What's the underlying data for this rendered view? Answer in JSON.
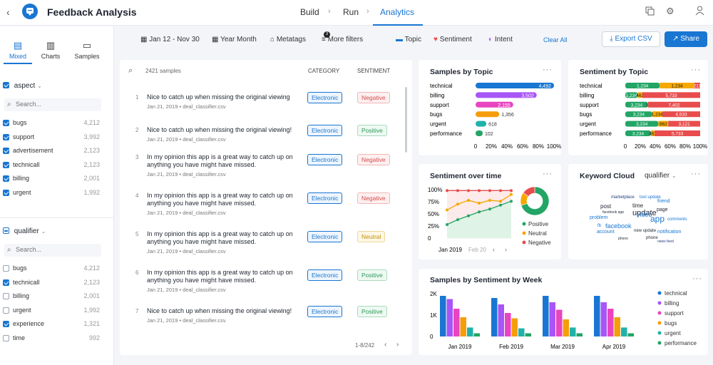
{
  "header": {
    "title": "Feedback Analysis",
    "tabs": [
      "Build",
      "Run",
      "Analytics"
    ],
    "active_tab": "Analytics"
  },
  "left": {
    "views": [
      "Mixed",
      "Charts",
      "Samples"
    ],
    "aspect": {
      "label": "aspect",
      "search_placeholder": "Search...",
      "items": [
        {
          "label": "bugs",
          "count": "4,212",
          "checked": true
        },
        {
          "label": "support",
          "count": "3,992",
          "checked": true
        },
        {
          "label": "advertisement",
          "count": "2,123",
          "checked": true
        },
        {
          "label": "technicall",
          "count": "2,123",
          "checked": true
        },
        {
          "label": "billing",
          "count": "2,001",
          "checked": true
        },
        {
          "label": "urgent",
          "count": "1,992",
          "checked": true
        }
      ]
    },
    "qualifier": {
      "label": "qualifier",
      "search_placeholder": "Search...",
      "items": [
        {
          "label": "bugs",
          "count": "4,212",
          "checked": false
        },
        {
          "label": "technicall",
          "count": "2,123",
          "checked": true
        },
        {
          "label": "billing",
          "count": "2,001",
          "checked": false
        },
        {
          "label": "urgent",
          "count": "1,992",
          "checked": false
        },
        {
          "label": "experience",
          "count": "1,321",
          "checked": true
        },
        {
          "label": "time",
          "count": "992",
          "checked": false
        }
      ]
    }
  },
  "toolbar": {
    "date": "Jan 12 - Nov 30",
    "granularity": "Year Month",
    "metatags": "Metatags",
    "more_filters": "More filters",
    "filter_badge": "3",
    "topic": "Topic",
    "sentiment": "Sentiment",
    "intent": "Intent",
    "clear_all": "Clear All",
    "export": "Export CSV",
    "share": "Share"
  },
  "samples": {
    "count_label": "2421 samples",
    "col_category": "CATEGORY",
    "col_sentiment": "SENTIMENT",
    "pagination": "1-8/242",
    "rows": [
      {
        "n": "1",
        "text": "Nice to catch up when missing the original viewing",
        "meta": "Jan 21, 2019 • deal_classifier.csv",
        "category": "Electronic",
        "sentiment": "Negative"
      },
      {
        "n": "2",
        "text": "Nice to catch up when missing the original viewing!",
        "meta": "Jan 21, 2019 • deal_classifier.csv",
        "category": "Electronic",
        "sentiment": "Positive"
      },
      {
        "n": "3",
        "text": "In my opinion this app is a great way to catch up on anything you have might have missed.",
        "meta": "Jan 21, 2019 • deal_classifier.csv",
        "category": "Electronic",
        "sentiment": "Negative"
      },
      {
        "n": "4",
        "text": "In my opinion this app is a great way to catch up on anything you have might have missed.",
        "meta": "Jan 21, 2019 • deal_classifier.csv",
        "category": "Electronic",
        "sentiment": "Negative"
      },
      {
        "n": "5",
        "text": "In my opinion this app is a great way to catch up on anything you have might have missed.",
        "meta": "Jan 21, 2019 • deal_classifier.csv",
        "category": "Electronic",
        "sentiment": "Neutral"
      },
      {
        "n": "6",
        "text": "In my opinion this app is a great way to catch up on anything you have might have missed.",
        "meta": "Jan 21, 2019 • deal_classifier.csv",
        "category": "Electronic",
        "sentiment": "Positive"
      },
      {
        "n": "7",
        "text": "Nice to catch up when missing the original viewing!",
        "meta": "Jan 21, 2019 • deal_classifier.csv",
        "category": "Electronic",
        "sentiment": "Positive"
      }
    ]
  },
  "colors": {
    "technical": "#1976d2",
    "billing": "#a855f7",
    "support": "#e845c0",
    "bugs": "#f59e0b",
    "urgent": "#20b2aa",
    "performance": "#22a565",
    "positive": "#22a565",
    "neutral": "#f5a800",
    "negative": "#e84c4c"
  },
  "chart_data": [
    {
      "type": "bar",
      "title": "Samples by Topic",
      "categories": [
        "technical",
        "billing",
        "support",
        "bugs",
        "urgent",
        "performance"
      ],
      "values": [
        4492,
        3502,
        2155,
        1356,
        618,
        102
      ],
      "data_labels": [
        "4,492",
        "3,502",
        "2,155",
        "1,356",
        "618",
        "102"
      ],
      "x_ticks": [
        "0",
        "20%",
        "40%",
        "60%",
        "80%",
        "100%"
      ]
    },
    {
      "type": "bar",
      "title": "Sentiment by Topic",
      "stacked": true,
      "categories": [
        "technical",
        "billing",
        "support",
        "bugs",
        "urgent",
        "performance"
      ],
      "series": [
        {
          "name": "Positive",
          "values": [
            1234,
            1234,
            3234,
            3234,
            3234,
            3234
          ],
          "labels": [
            "1,234",
            "1,234",
            "3,234",
            "3,234",
            "3,234",
            "3,234"
          ]
        },
        {
          "name": "Neutral",
          "values": [
            1234,
            462,
            12,
            1234,
            962,
            462
          ],
          "labels": [
            "1,234",
            "462",
            "12",
            "1,234",
            "962",
            "462"
          ]
        },
        {
          "name": "Negative",
          "values": [
            211,
            5733,
            7402,
            4533,
            3121,
            5733
          ],
          "labels": [
            "211",
            "5,733",
            "7,402",
            "4,533",
            "3,121",
            "5,733"
          ]
        }
      ],
      "x_ticks": [
        "0",
        "20%",
        "40%",
        "60%",
        "80%",
        "100%"
      ]
    },
    {
      "type": "line",
      "title": "Sentiment over time",
      "y_ticks": [
        "100%",
        "75%",
        "50%",
        "25%",
        "0"
      ],
      "x_ticks": [
        "Jan 2019",
        "Feb 20"
      ],
      "series": [
        {
          "name": "Negative",
          "values": [
            98,
            98,
            98,
            98,
            98,
            98,
            98
          ]
        },
        {
          "name": "Neutral",
          "values": [
            58,
            70,
            78,
            72,
            78,
            76,
            90
          ]
        },
        {
          "name": "Positive",
          "values": [
            28,
            38,
            46,
            54,
            60,
            68,
            76
          ]
        }
      ],
      "legend": [
        "Positive",
        "Neutral",
        "Negative"
      ],
      "donut": [
        70,
        15,
        15
      ]
    },
    {
      "type": "bar",
      "title": "Samples by Sentiment by Week",
      "categories": [
        "Jan 2019",
        "Feb 2019",
        "Mar 2019",
        "Apr 2019"
      ],
      "y_ticks": [
        "2K",
        "1K",
        "0"
      ],
      "series": [
        {
          "name": "technical",
          "values": [
            1900,
            1800,
            1900,
            1900
          ]
        },
        {
          "name": "billing",
          "values": [
            1750,
            1500,
            1600,
            1600
          ]
        },
        {
          "name": "support",
          "values": [
            1300,
            1100,
            1250,
            1300
          ]
        },
        {
          "name": "bugs",
          "values": [
            900,
            850,
            800,
            900
          ]
        },
        {
          "name": "urgent",
          "values": [
            420,
            380,
            420,
            420
          ]
        },
        {
          "name": "performance",
          "values": [
            150,
            150,
            150,
            150
          ]
        }
      ]
    }
  ],
  "keyword_cloud": {
    "title": "Keyword Cloud",
    "filter": "qualifier",
    "words": [
      "marketplace",
      "tool update",
      "friend",
      "post",
      "time",
      "facebook app",
      "update",
      "video",
      "page",
      "problem",
      "app",
      "comments",
      "fb",
      "facebook",
      "new update",
      "notification",
      "account",
      "phono",
      "phone",
      "news feed"
    ]
  }
}
